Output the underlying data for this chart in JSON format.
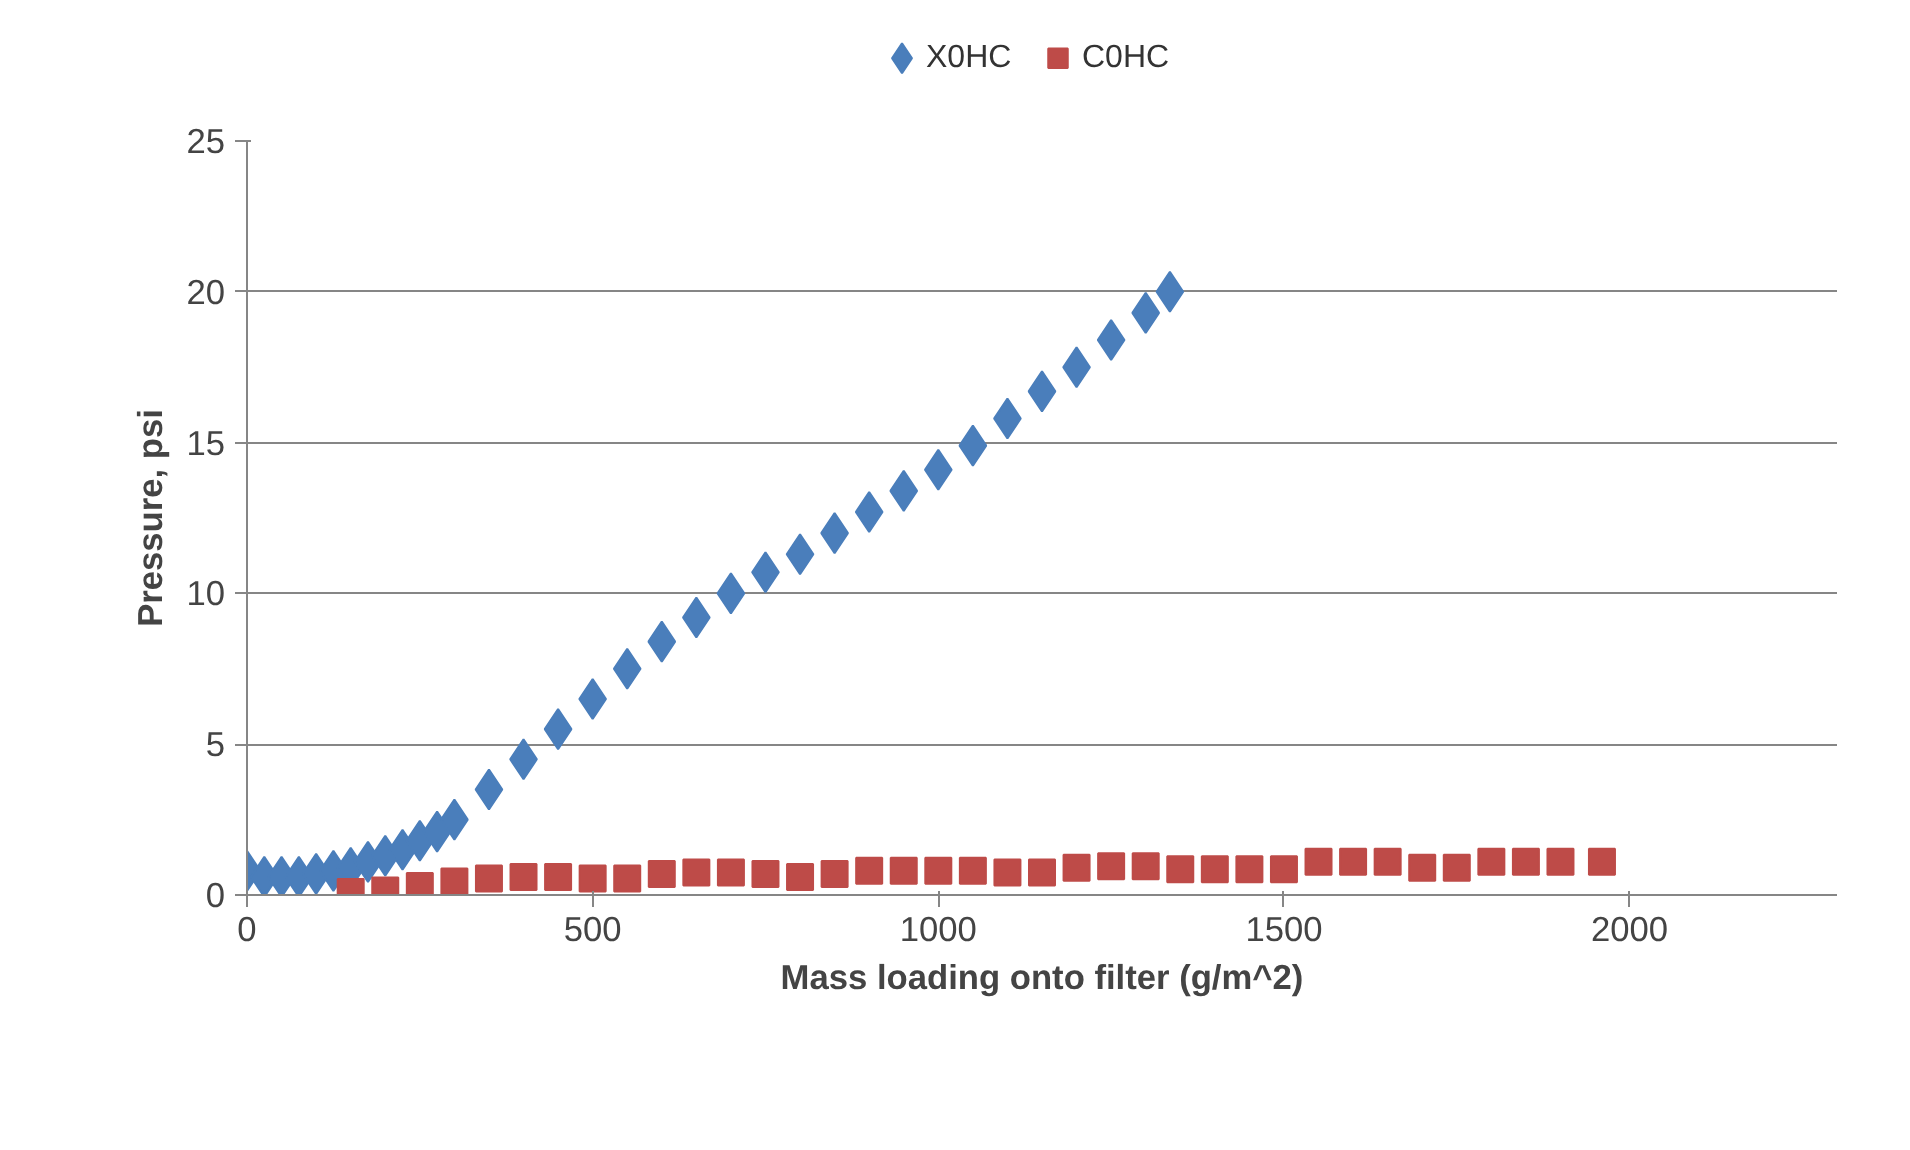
{
  "chart_data": {
    "type": "scatter",
    "xlabel": "Mass loading onto filter (g/m^2)",
    "ylabel": "Pressure, psi",
    "xlim": [
      0,
      2300
    ],
    "ylim": [
      0,
      25
    ],
    "xticks": [
      0,
      500,
      1000,
      1500,
      2000
    ],
    "yticks": [
      0,
      5,
      10,
      15,
      20,
      25
    ],
    "grid": "y",
    "legend": "top",
    "series": [
      {
        "name": "X0HC",
        "color": "#4a7ebb",
        "marker": "diamond",
        "x": [
          0,
          25,
          50,
          75,
          100,
          125,
          150,
          175,
          200,
          225,
          250,
          275,
          300,
          350,
          400,
          450,
          500,
          550,
          600,
          650,
          700,
          750,
          800,
          850,
          900,
          950,
          1000,
          1050,
          1100,
          1150,
          1200,
          1250,
          1300,
          1335
        ],
        "values": [
          0.8,
          0.6,
          0.6,
          0.6,
          0.7,
          0.8,
          0.9,
          1.1,
          1.3,
          1.5,
          1.8,
          2.1,
          2.5,
          3.5,
          4.5,
          5.5,
          6.5,
          7.5,
          8.4,
          9.2,
          10.0,
          10.7,
          11.3,
          12.0,
          12.7,
          13.4,
          14.1,
          14.9,
          15.8,
          16.7,
          17.5,
          18.4,
          19.3,
          20.0
        ]
      },
      {
        "name": "C0HC",
        "color": "#be4b48",
        "marker": "square",
        "x": [
          150,
          200,
          250,
          300,
          350,
          400,
          450,
          500,
          550,
          600,
          650,
          700,
          750,
          800,
          850,
          900,
          950,
          1000,
          1050,
          1100,
          1150,
          1200,
          1250,
          1300,
          1350,
          1400,
          1450,
          1500,
          1550,
          1600,
          1650,
          1700,
          1750,
          1800,
          1850,
          1900,
          1960
        ],
        "values": [
          0.1,
          0.15,
          0.3,
          0.45,
          0.55,
          0.6,
          0.6,
          0.55,
          0.55,
          0.7,
          0.75,
          0.75,
          0.7,
          0.6,
          0.7,
          0.8,
          0.8,
          0.8,
          0.8,
          0.75,
          0.75,
          0.9,
          0.95,
          0.95,
          0.85,
          0.85,
          0.85,
          0.85,
          1.1,
          1.1,
          1.1,
          0.9,
          0.9,
          1.1,
          1.1,
          1.1,
          1.1
        ]
      }
    ]
  }
}
